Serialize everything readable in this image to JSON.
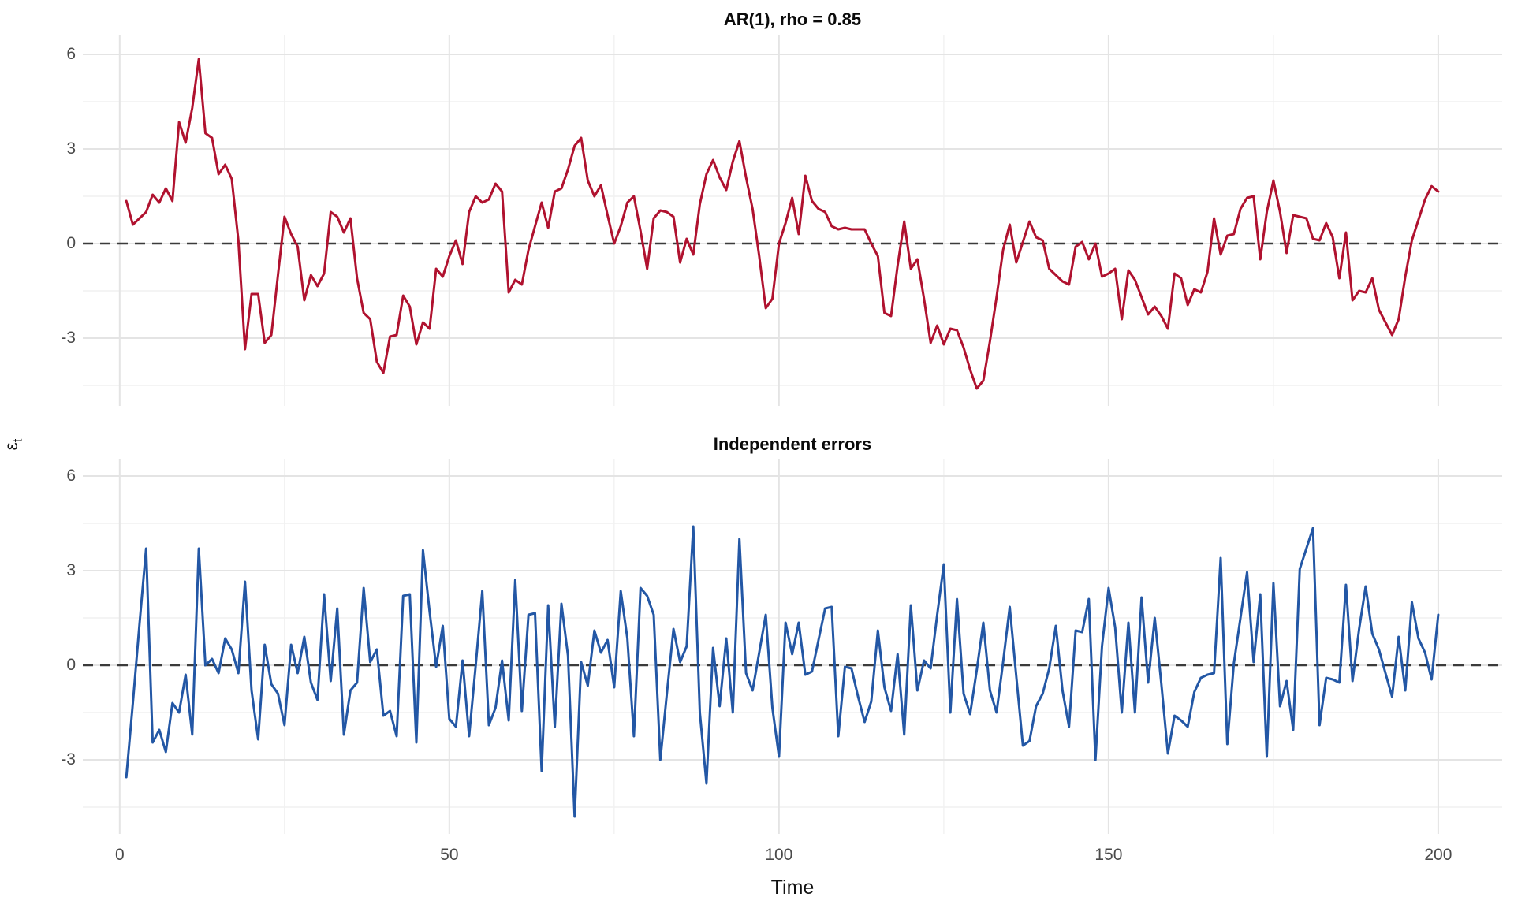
{
  "page": {
    "background": "#ffffff"
  },
  "y_axis_label": {
    "base": "ε",
    "sub": "t"
  },
  "x_axis_label": "Time",
  "grid": {
    "major_color": "#e4e4e4",
    "minor_color": "#f1f1f1"
  },
  "axis_text_color": "#4a4a4a",
  "chart_data": [
    {
      "type": "line",
      "title": "AR(1), rho = 0.85",
      "series_name": "AR(1) errors, rho = 0.85",
      "color": "#B0122F",
      "line_width": 3,
      "x_start": 1,
      "x_step": 1,
      "xlim": [
        -5.6,
        209.7
      ],
      "ylim": [
        -5.15,
        6.6
      ],
      "x_major_gridlines": [
        0,
        50,
        100,
        150,
        200
      ],
      "x_minor_gridlines": [
        25,
        75,
        125,
        175
      ],
      "y_major_gridlines": [
        -3,
        0,
        3,
        6
      ],
      "y_minor_gridlines": [
        -4.5,
        -1.5,
        1.5,
        4.5
      ],
      "y_tick_labels": [
        6,
        3,
        0,
        -3
      ],
      "zero_line": {
        "y": 0,
        "style": "dashed",
        "color": "#3b3b3b"
      },
      "values": [
        1.35,
        0.6,
        0.8,
        1.0,
        1.55,
        1.3,
        1.75,
        1.35,
        3.85,
        3.2,
        4.3,
        5.85,
        3.5,
        3.35,
        2.2,
        2.5,
        2.05,
        0.1,
        -3.35,
        -1.6,
        -1.6,
        -3.15,
        -2.9,
        -1.0,
        0.85,
        0.3,
        -0.1,
        -1.8,
        -1.0,
        -1.35,
        -0.95,
        1.0,
        0.85,
        0.35,
        0.8,
        -1.1,
        -2.2,
        -2.4,
        -3.75,
        -4.1,
        -2.95,
        -2.9,
        -1.65,
        -2.0,
        -3.2,
        -2.5,
        -2.7,
        -0.8,
        -1.05,
        -0.4,
        0.1,
        -0.65,
        1.0,
        1.5,
        1.3,
        1.4,
        1.9,
        1.65,
        -1.55,
        -1.15,
        -1.3,
        -0.2,
        0.55,
        1.3,
        0.5,
        1.65,
        1.75,
        2.35,
        3.1,
        3.35,
        2.0,
        1.5,
        1.85,
        0.9,
        0.0,
        0.55,
        1.3,
        1.5,
        0.4,
        -0.8,
        0.8,
        1.05,
        1.0,
        0.85,
        -0.6,
        0.15,
        -0.35,
        1.25,
        2.2,
        2.65,
        2.1,
        1.7,
        2.6,
        3.25,
        2.1,
        1.1,
        -0.4,
        -2.05,
        -1.75,
        0.0,
        0.65,
        1.45,
        0.3,
        2.15,
        1.35,
        1.1,
        1.0,
        0.55,
        0.45,
        0.5,
        0.45,
        0.45,
        0.45,
        0.0,
        -0.4,
        -2.2,
        -2.3,
        -0.7,
        0.7,
        -0.8,
        -0.5,
        -1.75,
        -3.15,
        -2.6,
        -3.2,
        -2.7,
        -2.75,
        -3.3,
        -4.0,
        -4.6,
        -4.35,
        -3.1,
        -1.7,
        -0.2,
        0.6,
        -0.6,
        0.05,
        0.7,
        0.2,
        0.1,
        -0.8,
        -1.0,
        -1.2,
        -1.3,
        -0.1,
        0.05,
        -0.5,
        0.0,
        -1.05,
        -0.95,
        -0.8,
        -2.4,
        -0.85,
        -1.15,
        -1.7,
        -2.25,
        -2.0,
        -2.3,
        -2.7,
        -0.95,
        -1.1,
        -1.95,
        -1.45,
        -1.55,
        -0.9,
        0.8,
        -0.35,
        0.25,
        0.3,
        1.1,
        1.45,
        1.5,
        -0.5,
        1.0,
        2.0,
        1.0,
        -0.3,
        0.9,
        0.85,
        0.8,
        0.15,
        0.1,
        0.65,
        0.2,
        -1.1,
        0.35,
        -1.8,
        -1.5,
        -1.55,
        -1.1,
        -2.1,
        -2.5,
        -2.9,
        -2.4,
        -1.05,
        0.1,
        0.75,
        1.4,
        1.82,
        1.65
      ]
    },
    {
      "type": "line",
      "title": "Independent errors",
      "series_name": "Independent errors",
      "color": "#2357A5",
      "line_width": 3,
      "x_start": 1,
      "x_step": 1,
      "xlim": [
        -5.6,
        209.7
      ],
      "ylim": [
        -5.35,
        6.55
      ],
      "x_major_gridlines": [
        0,
        50,
        100,
        150,
        200
      ],
      "x_minor_gridlines": [
        25,
        75,
        125,
        175
      ],
      "y_major_gridlines": [
        -3,
        0,
        3,
        6
      ],
      "y_minor_gridlines": [
        -4.5,
        -1.5,
        1.5,
        4.5
      ],
      "y_tick_labels": [
        6,
        3,
        0,
        -3
      ],
      "x_tick_labels": [
        0,
        50,
        100,
        150,
        200
      ],
      "zero_line": {
        "y": 0,
        "style": "dashed",
        "color": "#3b3b3b"
      },
      "values": [
        -3.55,
        -1.2,
        1.3,
        3.7,
        -2.45,
        -2.05,
        -2.75,
        -1.2,
        -1.5,
        -0.3,
        -2.2,
        3.7,
        0.0,
        0.2,
        -0.25,
        0.85,
        0.5,
        -0.25,
        2.65,
        -0.8,
        -2.35,
        0.65,
        -0.6,
        -0.9,
        -1.9,
        0.65,
        -0.25,
        0.9,
        -0.55,
        -1.1,
        2.25,
        -0.5,
        1.8,
        -2.2,
        -0.8,
        -0.55,
        2.45,
        0.1,
        0.5,
        -1.6,
        -1.45,
        -2.25,
        2.2,
        2.25,
        -2.45,
        3.65,
        1.7,
        -0.05,
        1.25,
        -1.7,
        -1.95,
        0.15,
        -2.25,
        0.0,
        2.35,
        -1.9,
        -1.35,
        0.15,
        -1.75,
        2.7,
        -1.45,
        1.6,
        1.65,
        -3.35,
        1.9,
        -1.95,
        1.95,
        0.3,
        -4.8,
        0.1,
        -0.65,
        1.1,
        0.4,
        0.8,
        -0.7,
        2.35,
        0.85,
        -2.25,
        2.45,
        2.2,
        1.6,
        -3.0,
        -0.9,
        1.15,
        0.1,
        0.6,
        4.4,
        -1.5,
        -3.75,
        0.55,
        -1.3,
        0.85,
        -1.5,
        4.0,
        -0.25,
        -0.8,
        0.4,
        1.6,
        -1.35,
        -2.9,
        1.35,
        0.35,
        1.35,
        -0.3,
        -0.2,
        0.8,
        1.8,
        1.85,
        -2.25,
        -0.05,
        -0.1,
        -1.0,
        -1.8,
        -1.15,
        1.1,
        -0.7,
        -1.45,
        0.35,
        -2.2,
        1.9,
        -0.8,
        0.15,
        -0.1,
        1.6,
        3.2,
        -1.5,
        2.1,
        -0.9,
        -1.55,
        -0.15,
        1.35,
        -0.8,
        -1.5,
        0.1,
        1.85,
        -0.35,
        -2.55,
        -2.4,
        -1.3,
        -0.9,
        -0.1,
        1.25,
        -0.8,
        -1.95,
        1.1,
        1.05,
        2.1,
        -3.0,
        0.6,
        2.45,
        1.2,
        -1.5,
        1.35,
        -1.5,
        2.15,
        -0.55,
        1.5,
        -0.6,
        -2.8,
        -1.6,
        -1.75,
        -1.95,
        -0.85,
        -0.4,
        -0.3,
        -0.25,
        3.4,
        -2.5,
        0.05,
        1.5,
        2.95,
        0.1,
        2.25,
        -2.9,
        2.6,
        -1.3,
        -0.5,
        -2.05,
        3.05,
        3.7,
        4.35,
        -1.9,
        -0.4,
        -0.45,
        -0.55,
        2.55,
        -0.5,
        1.15,
        2.5,
        1.0,
        0.5,
        -0.25,
        -1.0,
        0.9,
        -0.8,
        2.0,
        0.85,
        0.4,
        -0.45,
        1.6
      ]
    }
  ]
}
